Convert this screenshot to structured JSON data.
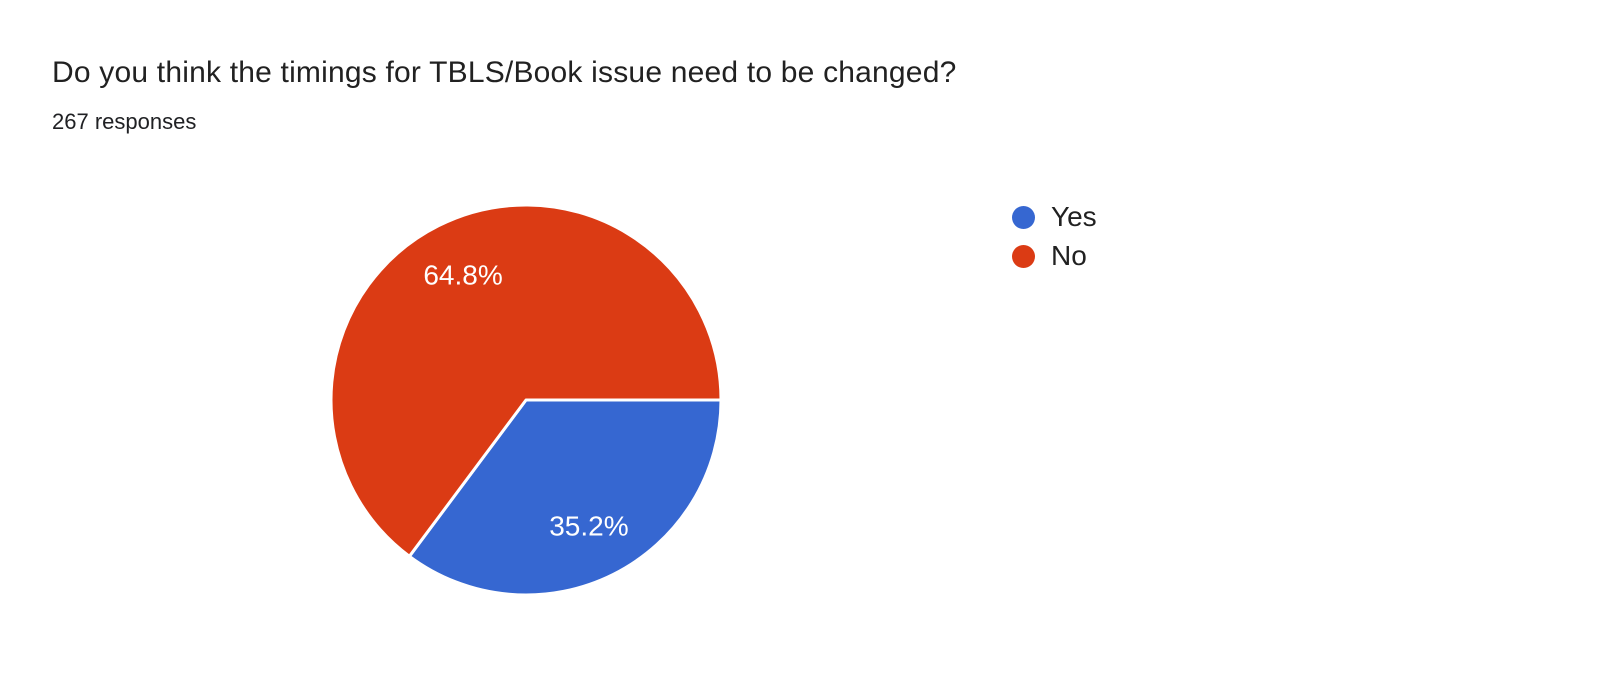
{
  "header": {
    "title": "Do you think the timings for TBLS/Book issue need to be changed?",
    "responses_text": "267 responses"
  },
  "chart_data": {
    "type": "pie",
    "title": "Do you think the timings for TBLS/Book issue need to be changed?",
    "subtitle": "267 responses",
    "total_responses": 267,
    "legend_position": "right",
    "start_angle_deg": 0,
    "direction": "clockwise",
    "label_color": "#ffffff",
    "slices": [
      {
        "label": "Yes",
        "percent": 35.2,
        "display": "35.2%",
        "color": "#3667d1"
      },
      {
        "label": "No",
        "percent": 64.8,
        "display": "64.8%",
        "color": "#db3b14"
      }
    ]
  }
}
